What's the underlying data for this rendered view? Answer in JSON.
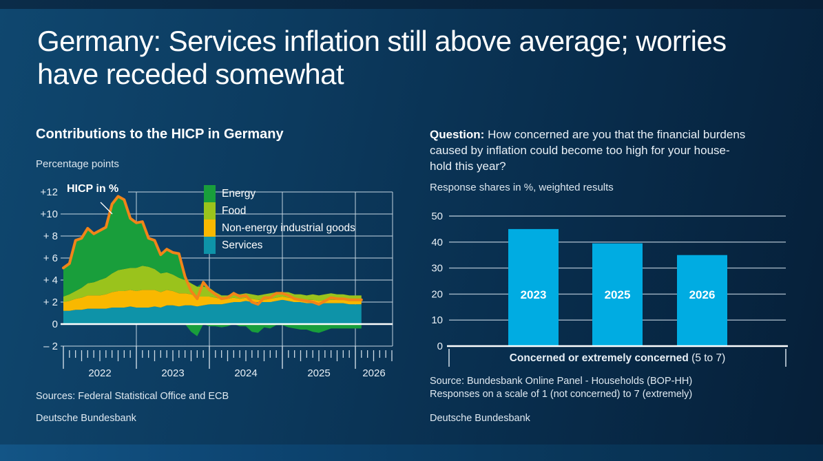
{
  "slide": {
    "title_line1": "Germany: Services inflation still above average; worries",
    "title_line2": "have receded somewhat"
  },
  "left_panel": {
    "title": "Contributions to the HICP in Germany",
    "subtitle": "Percentage points",
    "sources": "Sources: Federal Statistical Office and ECB",
    "footer": "Deutsche Bundesbank"
  },
  "right_panel": {
    "question_prefix": "Question:",
    "question_line1": " How concerned are you that the financial burdens",
    "question_line2": "caused by inflation could become too high for your house-",
    "question_line3": "hold this year?",
    "subtitle": "Response shares in %, weighted results",
    "source_line1": "Source: Bundesbank Online Panel - Households (BOP-HH)",
    "source_line2": "Responses on a scale of 1 (not concerned) to 7 (extremely)",
    "footer": "Deutsche Bundesbank"
  },
  "chart_data": [
    {
      "type": "area",
      "title": "Contributions to the HICP in Germany",
      "ylabel": "Percentage points",
      "annotation": "HICP in %",
      "x_start": "2022-01",
      "x_end": "2026-02",
      "freq": "monthly",
      "x_tick_years": [
        "2022",
        "2023",
        "2024",
        "2025",
        "2026"
      ],
      "ylim": [
        -2,
        12
      ],
      "ytick_values": [
        12,
        10,
        8,
        6,
        4,
        2,
        0,
        -2
      ],
      "ytick_labels": [
        "+12",
        "+10",
        "+ 8",
        "+ 6",
        "+ 4",
        "+ 2",
        "0",
        "– 2"
      ],
      "grid": true,
      "legend_position": "top-right-inside",
      "legend": [
        {
          "label": "Energy",
          "color": "#199e3b"
        },
        {
          "label": "Food",
          "color": "#9ac31c"
        },
        {
          "label": "Non-energy industrial goods",
          "color": "#f9b800"
        },
        {
          "label": "Services",
          "color": "#0e93a8"
        }
      ],
      "series": [
        {
          "name": "Services",
          "color": "#0e93a8",
          "values": [
            1.2,
            1.2,
            1.3,
            1.3,
            1.4,
            1.4,
            1.4,
            1.4,
            1.5,
            1.5,
            1.5,
            1.6,
            1.5,
            1.5,
            1.5,
            1.6,
            1.5,
            1.7,
            1.7,
            1.6,
            1.7,
            1.7,
            1.6,
            1.7,
            1.8,
            1.8,
            1.8,
            1.9,
            2.0,
            2.0,
            2.1,
            2.0,
            2.0,
            2.0,
            2.0,
            2.1,
            2.2,
            2.1,
            2.0,
            2.0,
            1.9,
            1.9,
            1.8,
            1.9,
            1.9,
            1.9,
            1.9,
            1.8,
            1.8,
            1.8
          ]
        },
        {
          "name": "Non-energy industrial goods",
          "color": "#f9b800",
          "values": [
            0.8,
            0.9,
            1.0,
            1.1,
            1.2,
            1.2,
            1.2,
            1.3,
            1.4,
            1.5,
            1.5,
            1.5,
            1.5,
            1.6,
            1.6,
            1.5,
            1.4,
            1.4,
            1.3,
            1.2,
            1.1,
            1.0,
            0.9,
            0.8,
            0.7,
            0.6,
            0.5,
            0.4,
            0.4,
            0.3,
            0.3,
            0.3,
            0.2,
            0.2,
            0.3,
            0.3,
            0.3,
            0.3,
            0.3,
            0.3,
            0.3,
            0.3,
            0.3,
            0.3,
            0.3,
            0.3,
            0.3,
            0.3,
            0.3,
            0.3
          ]
        },
        {
          "name": "Food",
          "color": "#9ac31c",
          "values": [
            0.5,
            0.6,
            0.7,
            0.9,
            1.1,
            1.2,
            1.4,
            1.5,
            1.7,
            1.9,
            2.0,
            2.0,
            2.1,
            2.2,
            2.1,
            1.9,
            1.7,
            1.6,
            1.5,
            1.4,
            1.2,
            1.0,
            0.9,
            0.9,
            0.8,
            0.5,
            0.3,
            0.3,
            0.4,
            0.4,
            0.4,
            0.4,
            0.4,
            0.5,
            0.5,
            0.5,
            0.4,
            0.5,
            0.4,
            0.4,
            0.4,
            0.5,
            0.5,
            0.5,
            0.6,
            0.5,
            0.5,
            0.5,
            0.5,
            0.5
          ]
        },
        {
          "name": "Energy",
          "color": "#199e3b",
          "values": [
            2.6,
            2.8,
            4.6,
            4.5,
            5.0,
            4.4,
            4.5,
            4.6,
            6.3,
            6.7,
            6.3,
            4.5,
            4.1,
            4.0,
            2.6,
            2.6,
            1.7,
            2.1,
            2.0,
            2.2,
            0.3,
            -0.7,
            -1.1,
            0.4,
            -0.2,
            -0.2,
            -0.3,
            -0.2,
            0.0,
            -0.2,
            -0.2,
            -0.7,
            -0.8,
            -0.3,
            -0.4,
            -0.1,
            -0.1,
            -0.3,
            -0.4,
            -0.5,
            -0.5,
            -0.7,
            -0.8,
            -0.6,
            -0.4,
            -0.4,
            -0.4,
            -0.4,
            -0.4,
            -0.4
          ]
        }
      ],
      "line": {
        "name": "HICP in %",
        "color": "#f28418",
        "values": [
          5.1,
          5.5,
          7.6,
          7.8,
          8.7,
          8.2,
          8.5,
          8.8,
          10.9,
          11.6,
          11.3,
          9.6,
          9.2,
          9.3,
          7.8,
          7.6,
          6.3,
          6.8,
          6.5,
          6.4,
          4.3,
          3.0,
          2.3,
          3.8,
          3.1,
          2.7,
          2.3,
          2.4,
          2.8,
          2.5,
          2.6,
          2.0,
          1.8,
          2.4,
          2.4,
          2.8,
          2.8,
          2.6,
          2.3,
          2.2,
          2.1,
          2.0,
          1.8,
          2.1,
          2.4,
          2.3,
          2.3,
          2.2,
          2.2,
          2.2
        ]
      }
    },
    {
      "type": "bar",
      "categories": [
        "2023",
        "2025",
        "2026"
      ],
      "values": [
        45,
        39.5,
        35
      ],
      "bar_color": "#00ace2",
      "ylim": [
        0,
        50
      ],
      "yticks": [
        0,
        10,
        20,
        30,
        40,
        50
      ],
      "grid": true,
      "xlabel_bold": "Concerned or extremely concerned",
      "xlabel_normal": " (5 to 7)",
      "subtitle": "Response shares in %, weighted results"
    }
  ]
}
